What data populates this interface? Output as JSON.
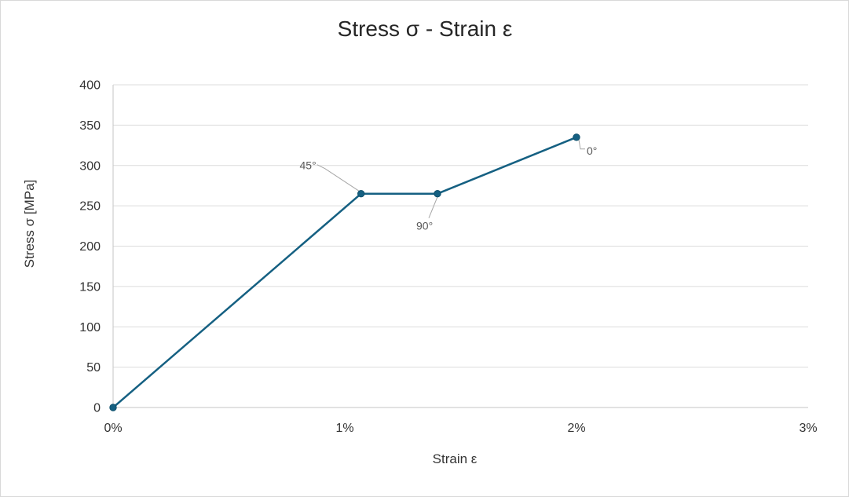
{
  "chart": {
    "title": "Stress σ - Strain ε"
  },
  "chart_data": {
    "type": "line",
    "title": "Stress σ - Strain ε",
    "xlabel": "Strain ε",
    "ylabel": "Stress σ [MPa]",
    "xlim": [
      0,
      3
    ],
    "ylim": [
      0,
      400
    ],
    "x_unit": "%",
    "x_tick_values": [
      0,
      1,
      2,
      3
    ],
    "x_tick_labels": [
      "0%",
      "1%",
      "2%",
      "3%"
    ],
    "y_tick_values": [
      0,
      50,
      100,
      150,
      200,
      250,
      300,
      350,
      400
    ],
    "y_tick_labels": [
      "0",
      "50",
      "100",
      "150",
      "200",
      "250",
      "300",
      "350",
      "400"
    ],
    "grid": "horizontal",
    "legend": "none",
    "series": [
      {
        "name": "stress-strain-curve",
        "color": "#156082",
        "marker": "circle",
        "points": [
          {
            "x": 0,
            "y": 0
          },
          {
            "x": 1.07,
            "y": 265,
            "label": "45°"
          },
          {
            "x": 1.4,
            "y": 265,
            "label": "90°"
          },
          {
            "x": 2.0,
            "y": 335,
            "label": "0°"
          }
        ]
      }
    ]
  },
  "colors": {
    "line": "#156082",
    "marker_fill": "#156082",
    "marker_edge": "#0f506c",
    "gridline": "#dcdcdc",
    "axis_line": "#c6c6c6",
    "leader": "#a6a6a6",
    "point_label_text": "#595959",
    "tick_text": "#333333",
    "title_text": "#262626",
    "frame_border": "#d9d9d9",
    "background": "#ffffff"
  }
}
